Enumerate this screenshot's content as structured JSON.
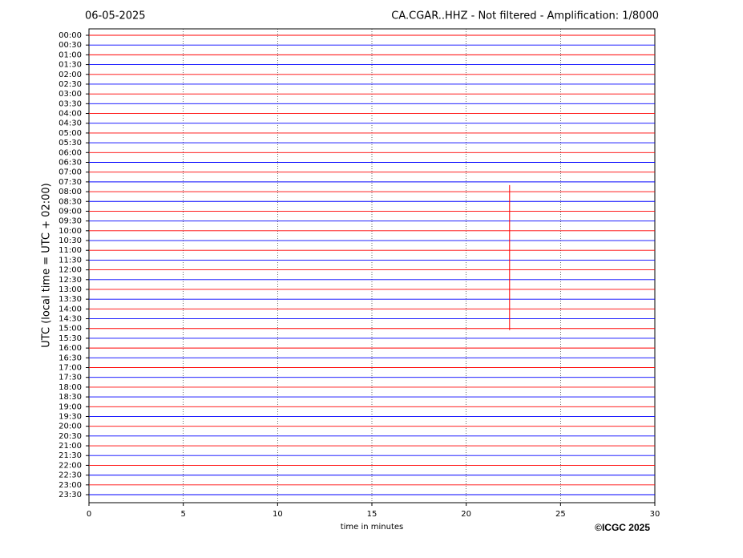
{
  "chart_data": {
    "type": "helicorder",
    "title_left": "06-05-2025",
    "title": "CA.CGAR..HHZ - Not filtered - Amplification: 1/8000",
    "ylabel": "UTC (local time = UTC + 02:00)",
    "xlabel": "time in minutes",
    "copyright": "©ICGC 2025",
    "xlim": [
      0,
      30
    ],
    "xticks": [
      0,
      5,
      10,
      15,
      20,
      25,
      30
    ],
    "grid": true,
    "colors": [
      "#ff0000",
      "#0000ff"
    ],
    "categories": [
      "00:00",
      "00:30",
      "01:00",
      "01:30",
      "02:00",
      "02:30",
      "03:00",
      "03:30",
      "04:00",
      "04:30",
      "05:00",
      "05:30",
      "06:00",
      "06:30",
      "07:00",
      "07:30",
      "08:00",
      "08:30",
      "09:00",
      "09:30",
      "10:00",
      "10:30",
      "11:00",
      "11:30",
      "12:00",
      "12:30",
      "13:00",
      "13:30",
      "14:00",
      "14:30",
      "15:00",
      "15:30",
      "16:00",
      "16:30",
      "17:00",
      "17:30",
      "18:00",
      "18:30",
      "19:00",
      "19:30",
      "20:00",
      "20:30",
      "21:00",
      "21:30",
      "22:00",
      "22:30",
      "23:00",
      "23:30"
    ],
    "event_x": 22.3
  }
}
